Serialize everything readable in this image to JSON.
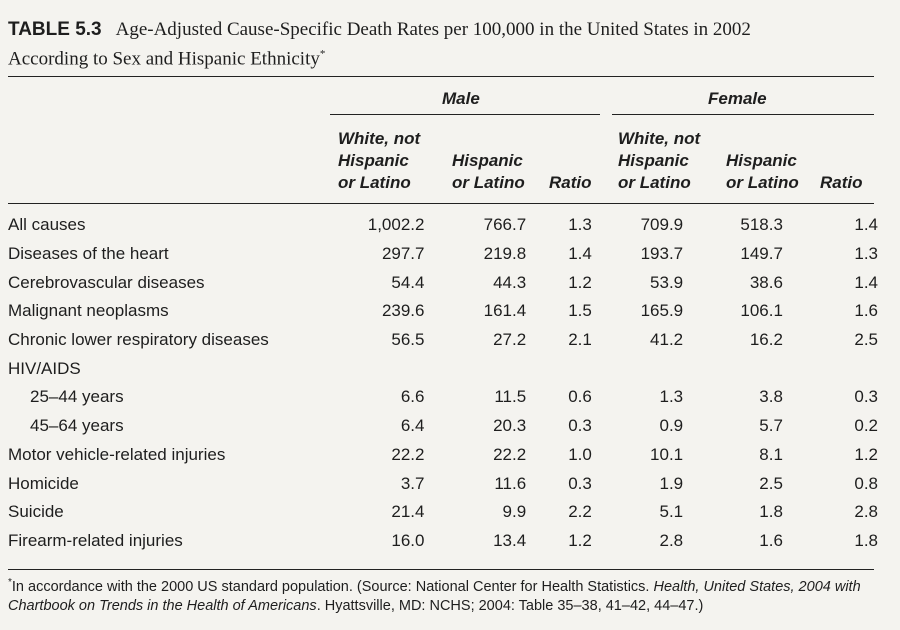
{
  "table": {
    "label": "TABLE 5.3",
    "title_line1": "Age-Adjusted Cause-Specific Death Rates per 100,000 in the United States in 2002",
    "title_line2": "According to Sex and Hispanic Ethnicity",
    "title_mark": "*",
    "groups": {
      "male": "Male",
      "female": "Female"
    },
    "columns": {
      "white_line1": "White, not",
      "white_line2": "Hispanic",
      "white_line3": "or Latino",
      "hisp_line1": "Hispanic",
      "hisp_line2": "or Latino",
      "ratio": "Ratio"
    },
    "rows": [
      {
        "cause": "All causes",
        "m_white": "1,002.2",
        "m_hisp": "766.7",
        "m_ratio": "1.3",
        "f_white": "709.9",
        "f_hisp": "518.3",
        "f_ratio": "1.4"
      },
      {
        "cause": "Diseases of the heart",
        "m_white": "297.7",
        "m_hisp": "219.8",
        "m_ratio": "1.4",
        "f_white": "193.7",
        "f_hisp": "149.7",
        "f_ratio": "1.3"
      },
      {
        "cause": "Cerebrovascular diseases",
        "m_white": "54.4",
        "m_hisp": "44.3",
        "m_ratio": "1.2",
        "f_white": "53.9",
        "f_hisp": "38.6",
        "f_ratio": "1.4"
      },
      {
        "cause": "Malignant neoplasms",
        "m_white": "239.6",
        "m_hisp": "161.4",
        "m_ratio": "1.5",
        "f_white": "165.9",
        "f_hisp": "106.1",
        "f_ratio": "1.6"
      },
      {
        "cause": "Chronic lower respiratory diseases",
        "m_white": "56.5",
        "m_hisp": "27.2",
        "m_ratio": "2.1",
        "f_white": "41.2",
        "f_hisp": "16.2",
        "f_ratio": "2.5"
      },
      {
        "cause": "HIV/AIDS",
        "m_white": "",
        "m_hisp": "",
        "m_ratio": "",
        "f_white": "",
        "f_hisp": "",
        "f_ratio": ""
      },
      {
        "cause": "25–44 years",
        "m_white": "6.6",
        "m_hisp": "11.5",
        "m_ratio": "0.6",
        "f_white": "1.3",
        "f_hisp": "3.8",
        "f_ratio": "0.3"
      },
      {
        "cause": "45–64 years",
        "m_white": "6.4",
        "m_hisp": "20.3",
        "m_ratio": "0.3",
        "f_white": "0.9",
        "f_hisp": "5.7",
        "f_ratio": "0.2"
      },
      {
        "cause": "Motor vehicle-related injuries",
        "m_white": "22.2",
        "m_hisp": "22.2",
        "m_ratio": "1.0",
        "f_white": "10.1",
        "f_hisp": "8.1",
        "f_ratio": "1.2"
      },
      {
        "cause": "Homicide",
        "m_white": "3.7",
        "m_hisp": "11.6",
        "m_ratio": "0.3",
        "f_white": "1.9",
        "f_hisp": "2.5",
        "f_ratio": "0.8"
      },
      {
        "cause": "Suicide",
        "m_white": "21.4",
        "m_hisp": "9.9",
        "m_ratio": "2.2",
        "f_white": "5.1",
        "f_hisp": "1.8",
        "f_ratio": "2.8"
      },
      {
        "cause": "Firearm-related injuries",
        "m_white": "16.0",
        "m_hisp": "13.4",
        "m_ratio": "1.2",
        "f_white": "2.8",
        "f_hisp": "1.6",
        "f_ratio": "1.8"
      }
    ],
    "footnote": {
      "mark": "*",
      "text_a": "In accordance with the 2000 US standard population. (Source: National Center for Health Statistics. ",
      "text_italic": "Health, United States, 2004 with Chartbook on Trends in the Health of Americans",
      "text_b": ". Hyattsville, MD: NCHS; 2004: Table 35–38, 41–42, 44–47.)"
    }
  }
}
